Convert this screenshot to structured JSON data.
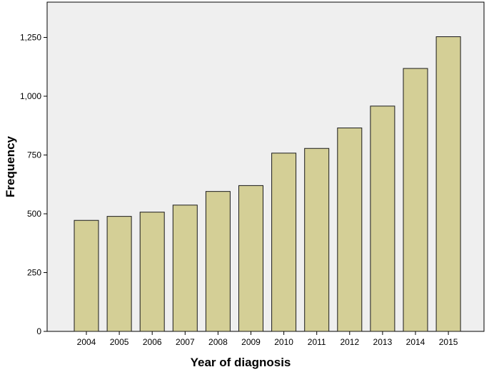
{
  "chart_data": {
    "type": "bar",
    "categories": [
      "2004",
      "2005",
      "2006",
      "2007",
      "2008",
      "2009",
      "2010",
      "2011",
      "2012",
      "2013",
      "2014",
      "2015"
    ],
    "values": [
      472,
      489,
      507,
      537,
      595,
      620,
      758,
      778,
      865,
      958,
      1118,
      1253
    ],
    "title": "",
    "xlabel": "Year of diagnosis",
    "ylabel": "Frequency",
    "ylim": [
      0,
      1400
    ],
    "yticks": [
      0,
      250,
      500,
      750,
      1000,
      1250
    ],
    "ytick_labels": [
      "0",
      "250",
      "500",
      "750",
      "1,000",
      "1,250"
    ],
    "grid": false,
    "legend": "none",
    "colors": {
      "bar_fill": "#d4cf96",
      "bar_stroke": "#1a1a1a",
      "plot_background": "#efefef"
    }
  }
}
